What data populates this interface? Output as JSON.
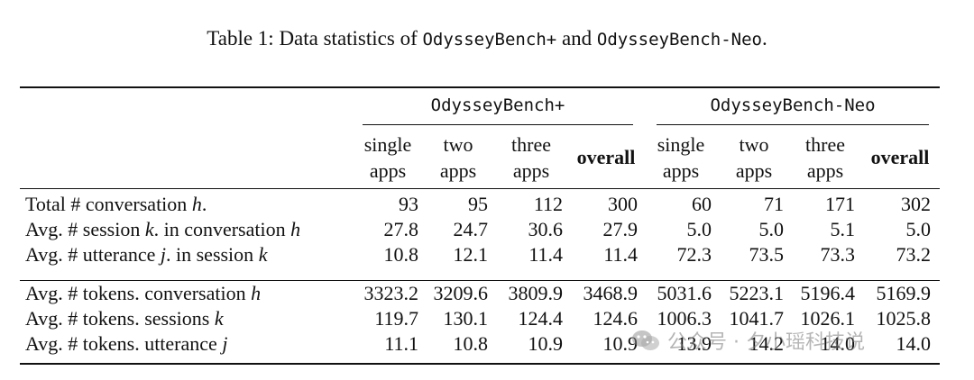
{
  "caption": {
    "prefix": "Table 1: Data statistics of ",
    "name1": "OdysseyBench+",
    "middle": " and ",
    "name2": "OdysseyBench-Neo",
    "suffix": "."
  },
  "groups": [
    "OdysseyBench+",
    "OdysseyBench-Neo"
  ],
  "columns": [
    {
      "line1": "single",
      "line2": "apps",
      "bold": false
    },
    {
      "line1": "two",
      "line2": "apps",
      "bold": false
    },
    {
      "line1": "three",
      "line2": "apps",
      "bold": false
    },
    {
      "line1": "overall",
      "line2": "",
      "bold": true
    },
    {
      "line1": "single",
      "line2": "apps",
      "bold": false
    },
    {
      "line1": "two",
      "line2": "apps",
      "bold": false
    },
    {
      "line1": "three",
      "line2": "apps",
      "bold": false
    },
    {
      "line1": "overall",
      "line2": "",
      "bold": true
    }
  ],
  "rows": [
    {
      "pre": "Total # conversation ",
      "var": "h",
      "post": ".",
      "values": [
        "93",
        "95",
        "112",
        "300",
        "60",
        "71",
        "171",
        "302"
      ]
    },
    {
      "pre": "Avg. # session ",
      "var": "k",
      "post": ". in conversation ",
      "var2": "h",
      "values": [
        "27.8",
        "24.7",
        "30.6",
        "27.9",
        "5.0",
        "5.0",
        "5.1",
        "5.0"
      ]
    },
    {
      "pre": "Avg. # utterance ",
      "var": "j",
      "post": ". in session ",
      "var2": "k",
      "values": [
        "10.8",
        "12.1",
        "11.4",
        "11.4",
        "72.3",
        "73.5",
        "73.3",
        "73.2"
      ]
    },
    {
      "pre": "Avg. # tokens. conversation ",
      "var": "h",
      "post": "",
      "values": [
        "3323.2",
        "3209.6",
        "3809.9",
        "3468.9",
        "5031.6",
        "5223.1",
        "5196.4",
        "5169.9"
      ]
    },
    {
      "pre": "Avg. # tokens. sessions ",
      "var": "k",
      "post": "",
      "values": [
        "119.7",
        "130.1",
        "124.4",
        "124.6",
        "1006.3",
        "1041.7",
        "1026.1",
        "1025.8"
      ]
    },
    {
      "pre": "Avg. # tokens. utterance ",
      "var": "j",
      "post": "",
      "values": [
        "11.1",
        "10.8",
        "10.9",
        "10.9",
        "13.9",
        "14.2",
        "14.0",
        "14.0"
      ]
    }
  ],
  "watermark": "公众号 · 夕小瑶科技说"
}
